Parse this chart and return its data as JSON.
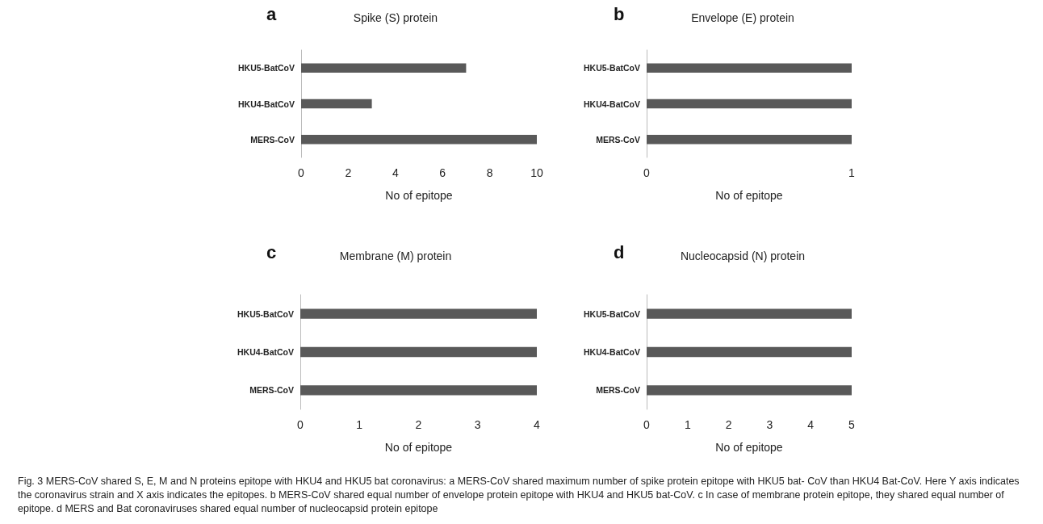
{
  "chart_data": [
    {
      "type": "bar",
      "orientation": "horizontal",
      "title": "Spike (S) protein",
      "xlabel": "No of epitope",
      "categories": [
        "HKU5-BatCoV",
        "HKU4-BatCoV",
        "MERS-CoV"
      ],
      "values": [
        7,
        3,
        10
      ],
      "color": "#595959",
      "xlim": [
        0,
        10
      ],
      "xticks": [
        0,
        2,
        4,
        6,
        8,
        10
      ],
      "annotations": [
        "a"
      ]
    },
    {
      "type": "bar",
      "orientation": "horizontal",
      "title": "Envelope (E) protein",
      "xlabel": "No of epitope",
      "categories": [
        "HKU5-BatCoV",
        "HKU4-BatCoV",
        "MERS-CoV"
      ],
      "values": [
        1,
        1,
        1
      ],
      "color": "#595959",
      "xlim": [
        0,
        1
      ],
      "xticks": [
        0,
        1
      ],
      "annotations": [
        "b"
      ]
    },
    {
      "type": "bar",
      "orientation": "horizontal",
      "title": "Membrane (M) protein",
      "xlabel": "No of epitope",
      "categories": [
        "HKU5-BatCoV",
        "HKU4-BatCoV",
        "MERS-CoV"
      ],
      "values": [
        4,
        4,
        4
      ],
      "color": "#595959",
      "xlim": [
        0,
        4
      ],
      "xticks": [
        0,
        1,
        2,
        3,
        4
      ],
      "annotations": [
        "c"
      ]
    },
    {
      "type": "bar",
      "orientation": "horizontal",
      "title": "Nucleocapsid (N) protein",
      "xlabel": "No of epitope",
      "categories": [
        "HKU5-BatCoV",
        "HKU4-BatCoV",
        "MERS-CoV"
      ],
      "values": [
        5,
        5,
        5
      ],
      "color": "#595959",
      "xlim": [
        0,
        5
      ],
      "xticks": [
        0,
        1,
        2,
        3,
        4,
        5
      ],
      "annotations": [
        "d",
        "Fig. 3 MERS-CoV shared S, E, M and N proteins epitope with HKU4 and HKU5 bat coronavirus: a MERS-CoV shared maximum number of spike protein epitope with HKU5 bat- CoV than HKU4 Bat-CoV. Here Y axis indicates the coronavirus strain and X axis indicates the epitopes. b MERS-CoV shared equal number of envelope protein epitope with HKU4 and HKU5 bat-CoV. c In case of membrane protein epitope, they shared equal number of epitope. d MERS and Bat coronaviruses shared equal number of nucleocapsid protein epitope"
      ]
    }
  ]
}
